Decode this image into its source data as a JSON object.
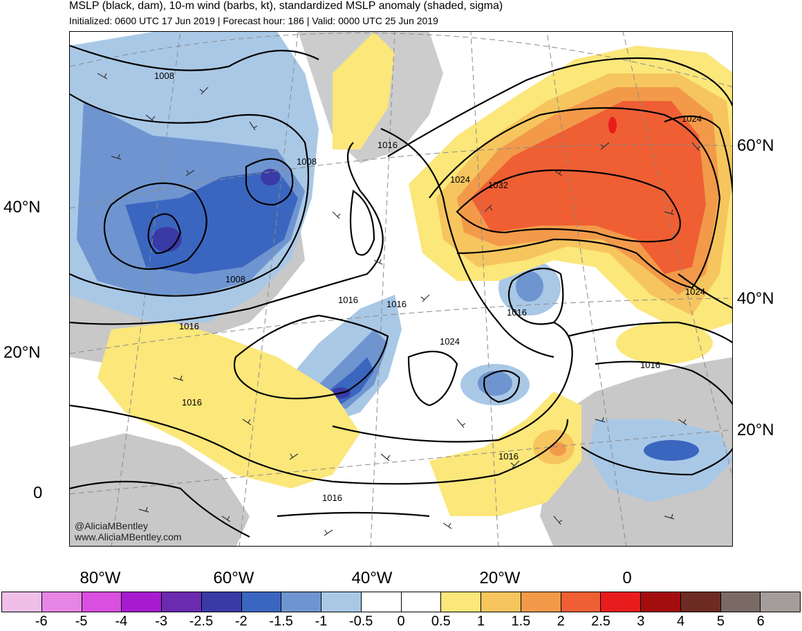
{
  "header": {
    "title": "MSLP (black, dam), 10-m wind (barbs, kt), standardized MSLP anomaly (shaded, sigma)",
    "subtitle": "Initialized: 0600 UTC 17 Jun 2019 | Forecast hour: 186 | Valid: 0000 UTC 25 Jun 2019"
  },
  "credit": {
    "line1": "@AliciaMBentley",
    "line2": "www.AliciaMBentley.com"
  },
  "axes": {
    "lat_left": [
      "40°N",
      "20°N",
      "0"
    ],
    "lat_right": [
      "60°N",
      "40°N",
      "20°N"
    ],
    "lon_bottom": [
      "80°W",
      "60°W",
      "40°W",
      "20°W",
      "0"
    ]
  },
  "isobar_labels": [
    "1008",
    "1008",
    "1008",
    "1016",
    "1016",
    "1016",
    "1016",
    "1016",
    "1016",
    "1016",
    "1016",
    "1016",
    "1024",
    "1024",
    "1024",
    "1024",
    "1032"
  ],
  "colorbar": {
    "colors": [
      "#f0bfe9",
      "#e685e4",
      "#d94fe0",
      "#a81ad0",
      "#6a2bb0",
      "#3a3aa6",
      "#3b66c0",
      "#6f95d0",
      "#a9c8e6",
      "#ffffff",
      "#ffffff",
      "#fbe77a",
      "#f6c55e",
      "#f29a4a",
      "#ef5f33",
      "#e81c1c",
      "#a30d0d",
      "#6e2b24",
      "#7a6a66",
      "#a59d9b"
    ],
    "labels": [
      "-6",
      "-5",
      "-4",
      "-3",
      "-2.5",
      "-2",
      "-1.5",
      "-1",
      "-0.5",
      "0",
      "0.5",
      "1",
      "1.5",
      "2",
      "2.5",
      "3",
      "4",
      "5",
      "6"
    ]
  }
}
